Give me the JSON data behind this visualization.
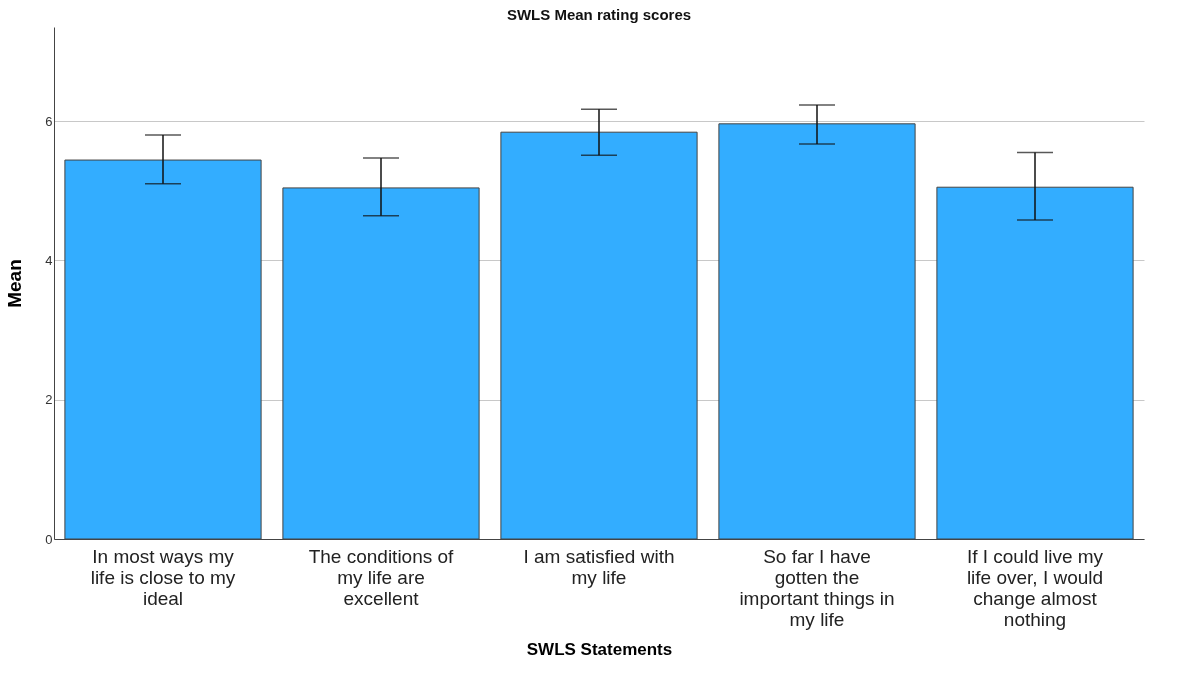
{
  "chart_data": {
    "type": "bar",
    "title": "SWLS Mean rating scores",
    "xlabel": "SWLS Statements",
    "ylabel": "Mean",
    "categories": [
      "In most ways my life is close to my ideal",
      "The conditions of my life are excellent",
      "I am satisfied with my life",
      "So far I have gotten the important things in my life",
      "If I could live my life over, I would change almost nothing"
    ],
    "values": [
      5.44,
      5.04,
      5.84,
      5.96,
      5.05
    ],
    "errors": [
      [
        5.1,
        5.8
      ],
      [
        4.64,
        5.47
      ],
      [
        5.51,
        6.17
      ],
      [
        5.67,
        6.23
      ],
      [
        4.58,
        5.55
      ]
    ],
    "color": "#33adff",
    "ylim": [
      0,
      7.35
    ],
    "yticks": [
      0,
      2,
      4,
      6
    ],
    "grid": "y"
  }
}
